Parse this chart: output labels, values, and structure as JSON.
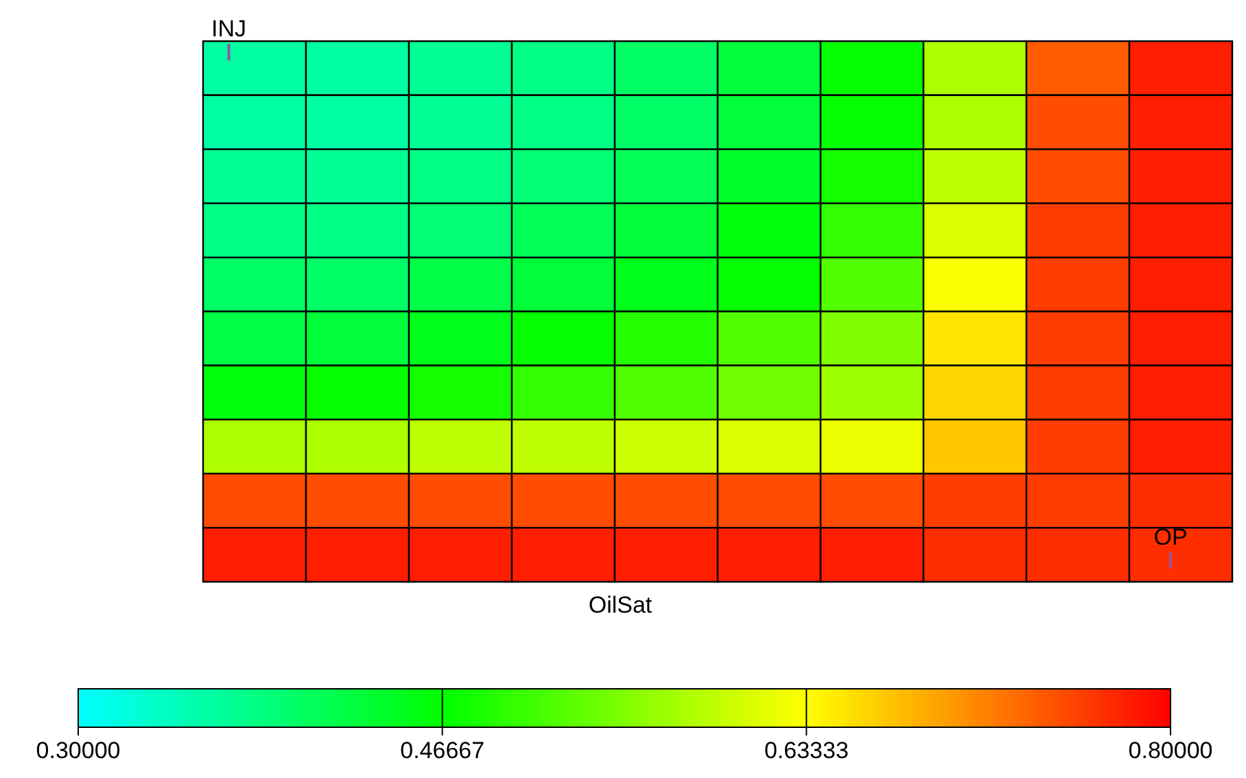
{
  "chart_data": {
    "type": "heatmap",
    "title": "OilSat",
    "categories": [
      null,
      null,
      null,
      null,
      null,
      null,
      null,
      null,
      null,
      null
    ],
    "y_categories": [
      null,
      null,
      null,
      null,
      null,
      null,
      null,
      null,
      null,
      null
    ],
    "cells": [
      [
        0.36,
        0.36,
        0.37,
        0.38,
        0.4,
        0.43,
        0.47,
        0.58,
        0.74,
        0.78
      ],
      [
        0.36,
        0.36,
        0.37,
        0.38,
        0.4,
        0.43,
        0.47,
        0.58,
        0.75,
        0.78
      ],
      [
        0.37,
        0.37,
        0.38,
        0.39,
        0.41,
        0.44,
        0.48,
        0.59,
        0.75,
        0.78
      ],
      [
        0.38,
        0.38,
        0.39,
        0.41,
        0.43,
        0.46,
        0.5,
        0.61,
        0.76,
        0.78
      ],
      [
        0.4,
        0.4,
        0.42,
        0.43,
        0.45,
        0.47,
        0.52,
        0.63,
        0.76,
        0.78
      ],
      [
        0.42,
        0.43,
        0.45,
        0.47,
        0.49,
        0.52,
        0.55,
        0.65,
        0.76,
        0.78
      ],
      [
        0.46,
        0.47,
        0.48,
        0.5,
        0.52,
        0.54,
        0.57,
        0.66,
        0.76,
        0.78
      ],
      [
        0.58,
        0.58,
        0.59,
        0.59,
        0.6,
        0.61,
        0.62,
        0.67,
        0.76,
        0.78
      ],
      [
        0.75,
        0.75,
        0.75,
        0.75,
        0.75,
        0.75,
        0.75,
        0.76,
        0.76,
        0.77
      ],
      [
        0.78,
        0.78,
        0.78,
        0.78,
        0.78,
        0.78,
        0.78,
        0.77,
        0.77,
        0.77
      ]
    ],
    "clim": [
      0.3,
      0.8
    ],
    "cticks": [
      {
        "value": 0.3,
        "label": "0.30000"
      },
      {
        "value": 0.46667,
        "label": "0.46667"
      },
      {
        "value": 0.63333,
        "label": "0.63333"
      },
      {
        "value": 0.8,
        "label": "0.80000"
      }
    ],
    "annotations": [
      "INJ",
      "OP"
    ]
  }
}
